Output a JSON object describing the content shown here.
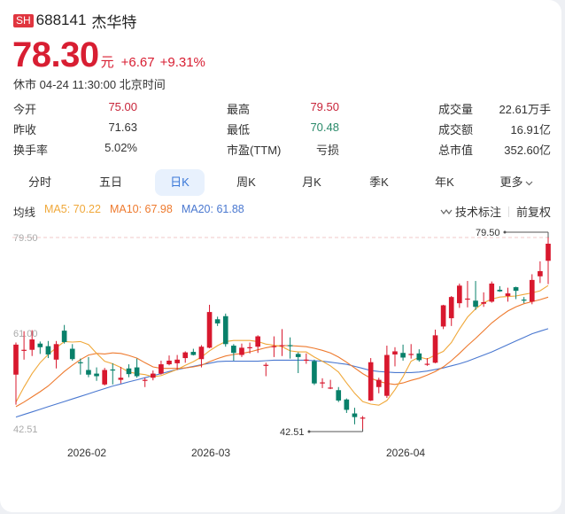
{
  "header": {
    "exchange_badge": "SH",
    "code": "688141",
    "name": "杰华特",
    "price": "78.30",
    "currency": "元",
    "change": "+6.67",
    "change_pct": "+9.31%",
    "status": "休市 04-24 11:30:00 北京时间"
  },
  "stats": [
    {
      "label": "今开",
      "value": "75.00",
      "color": "#c8253a"
    },
    {
      "label": "最高",
      "value": "79.50",
      "color": "#c8253a"
    },
    {
      "label": "成交量",
      "value": "22.61万手",
      "color": "#333333"
    },
    {
      "label": "昨收",
      "value": "71.63",
      "color": "#333333"
    },
    {
      "label": "最低",
      "value": "70.48",
      "color": "#2a8a6a"
    },
    {
      "label": "成交额",
      "value": "16.91亿",
      "color": "#333333"
    },
    {
      "label": "换手率",
      "value": "5.02%",
      "color": "#333333"
    },
    {
      "label": "市盈(TTM)",
      "value": "亏损",
      "color": "#333333"
    },
    {
      "label": "总市值",
      "value": "352.60亿",
      "color": "#333333"
    }
  ],
  "tabs": [
    {
      "label": "分时",
      "active": false
    },
    {
      "label": "五日",
      "active": false
    },
    {
      "label": "日K",
      "active": true
    },
    {
      "label": "周K",
      "active": false
    },
    {
      "label": "月K",
      "active": false
    },
    {
      "label": "季K",
      "active": false
    },
    {
      "label": "年K",
      "active": false
    },
    {
      "label": "更多",
      "active": false,
      "icon": "chevron-down-icon"
    }
  ],
  "indicators": {
    "label": "均线",
    "ma5": "MA5: 70.22",
    "ma10": "MA10: 67.98",
    "ma20": "MA20: 61.88",
    "tech_marks": "技术标注",
    "adjust": "前复权"
  },
  "colors": {
    "up": "#d8182e",
    "down": "#08806a",
    "ma5": "#f0a83a",
    "ma10": "#ee7a2e",
    "ma20": "#4a78d0",
    "accent": "#3a78d8"
  },
  "chart_data": {
    "type": "candlestick",
    "title": "688141 杰华特 日K",
    "ylim": [
      42.51,
      79.5
    ],
    "y_ticks": [
      "79.50",
      "61.00",
      "42.51"
    ],
    "x_ticks": [
      "2026-02",
      "2026-03",
      "2026-04"
    ],
    "annotations": {
      "high": "79.50",
      "low": "42.51"
    },
    "legend": [
      "MA5: 70.22",
      "MA10: 67.98",
      "MA20: 61.88"
    ],
    "candles": [
      [
        53.0,
        58.8,
        47.2,
        59.2
      ],
      [
        57.6,
        57.8,
        55.9,
        61.4
      ],
      [
        57.8,
        59.8,
        56.6,
        61.6
      ],
      [
        59.0,
        58.3,
        57.0,
        59.4
      ],
      [
        58.5,
        56.9,
        56.2,
        59.5
      ],
      [
        55.9,
        58.9,
        54.2,
        59.5
      ],
      [
        61.5,
        59.3,
        59.0,
        62.6
      ],
      [
        58.0,
        56.0,
        55.7,
        58.9
      ],
      [
        55.4,
        55.3,
        53.0,
        56.1
      ],
      [
        53.9,
        53.0,
        52.5,
        56.4
      ],
      [
        53.2,
        52.7,
        51.8,
        54.4
      ],
      [
        51.1,
        53.9,
        50.9,
        54.3
      ],
      [
        54.0,
        53.8,
        51.1,
        55.2
      ],
      [
        52.0,
        52.4,
        51.3,
        54.5
      ],
      [
        54.2,
        53.1,
        52.5,
        55.0
      ],
      [
        54.4,
        52.7,
        52.4,
        56.1
      ],
      [
        51.9,
        52.0,
        50.6,
        52.4
      ],
      [
        52.4,
        53.2,
        51.9,
        53.8
      ],
      [
        53.2,
        55.0,
        53.0,
        55.7
      ],
      [
        55.0,
        55.7,
        54.8,
        56.7
      ],
      [
        55.2,
        55.9,
        53.9,
        56.8
      ],
      [
        56.2,
        57.3,
        55.3,
        57.5
      ],
      [
        57.4,
        56.8,
        56.7,
        58.0
      ],
      [
        56.0,
        58.4,
        54.4,
        58.7
      ],
      [
        58.2,
        65.1,
        58.1,
        66.5
      ],
      [
        63.7,
        62.9,
        62.4,
        64.2
      ],
      [
        64.3,
        58.9,
        58.4,
        64.8
      ],
      [
        58.6,
        57.2,
        55.7,
        58.9
      ],
      [
        56.8,
        58.2,
        56.4,
        59.0
      ],
      [
        58.2,
        58.3,
        57.1,
        59.2
      ],
      [
        58.4,
        60.4,
        57.2,
        60.6
      ],
      [
        54.8,
        54.9,
        52.7,
        55.3
      ],
      [
        58.3,
        58.5,
        56.4,
        60.4
      ],
      [
        58.6,
        58.7,
        56.6,
        61.8
      ],
      [
        58.7,
        58.6,
        56.1,
        60.2
      ],
      [
        57.0,
        56.4,
        53.3,
        57.3
      ],
      [
        55.8,
        55.9,
        55.1,
        57.1
      ],
      [
        55.6,
        51.3,
        51.0,
        55.9
      ],
      [
        51.3,
        51.5,
        50.4,
        52.3
      ],
      [
        50.4,
        50.5,
        50.2,
        52.0
      ],
      [
        50.0,
        48.0,
        47.7,
        50.6
      ],
      [
        48.2,
        46.2,
        45.6,
        48.4
      ],
      [
        45.5,
        44.8,
        43.4,
        46.6
      ],
      [
        44.5,
        44.7,
        42.51,
        45.0
      ],
      [
        48.0,
        55.4,
        47.9,
        56.2
      ],
      [
        50.6,
        52.0,
        49.4,
        52.4
      ],
      [
        48.9,
        56.8,
        48.5,
        58.6
      ],
      [
        56.9,
        57.5,
        54.6,
        58.3
      ],
      [
        57.2,
        56.3,
        55.7,
        58.8
      ],
      [
        56.9,
        57.0,
        56.1,
        58.9
      ],
      [
        57.1,
        55.8,
        55.5,
        57.9
      ],
      [
        54.9,
        55.1,
        54.7,
        56.2
      ],
      [
        55.3,
        60.6,
        55.2,
        61.7
      ],
      [
        62.3,
        66.4,
        61.8,
        66.5
      ],
      [
        63.9,
        68.0,
        62.4,
        68.2
      ],
      [
        66.8,
        70.2,
        65.9,
        70.6
      ],
      [
        67.5,
        67.7,
        66.0,
        71.1
      ],
      [
        67.3,
        66.1,
        65.5,
        71.1
      ],
      [
        66.7,
        67.0,
        66.1,
        68.9
      ],
      [
        67.1,
        70.6,
        66.9,
        71.0
      ],
      [
        69.4,
        69.1,
        69.0,
        70.1
      ],
      [
        68.2,
        68.7,
        67.1,
        69.8
      ],
      [
        69.9,
        69.2,
        67.6,
        70.0
      ],
      [
        67.5,
        67.4,
        66.8,
        68.0
      ],
      [
        67.1,
        71.3,
        66.6,
        72.4
      ],
      [
        72.0,
        73.0,
        70.7,
        74.9
      ],
      [
        75.0,
        78.3,
        70.48,
        79.5
      ]
    ],
    "ma5": [
      47.7,
      50.6,
      53.2,
      55.3,
      56.9,
      58.2,
      59.4,
      59.3,
      59.4,
      58.8,
      57.1,
      55.6,
      55.1,
      54.4,
      53.5,
      53.2,
      53.0,
      52.6,
      52.8,
      53.4,
      54.0,
      54.8,
      55.5,
      56.4,
      57.6,
      58.6,
      59.4,
      59.6,
      59.6,
      59.6,
      59.4,
      58.9,
      58.7,
      58.4,
      57.6,
      57.4,
      57.4,
      56.4,
      55.6,
      54.7,
      53.5,
      51.4,
      49.4,
      47.8,
      47.3,
      47.1,
      48.0,
      50.1,
      52.6,
      55.6,
      56.4,
      56.0,
      56.8,
      57.5,
      59.2,
      61.8,
      64.1,
      65.7,
      66.9,
      67.6,
      68.0,
      68.1,
      68.2,
      68.5,
      68.8,
      69.2,
      70.22
    ],
    "ma10": [
      46.8,
      47.7,
      48.7,
      49.7,
      50.8,
      52.2,
      53.6,
      54.8,
      55.9,
      56.8,
      57.1,
      57.0,
      57.2,
      57.1,
      56.7,
      56.2,
      55.3,
      54.5,
      54.2,
      54.2,
      54.2,
      54.3,
      54.5,
      54.8,
      55.5,
      56.1,
      56.6,
      56.9,
      57.1,
      57.4,
      57.8,
      58.2,
      58.5,
      58.6,
      58.6,
      58.5,
      58.4,
      58.1,
      57.7,
      57.2,
      56.4,
      55.4,
      54.3,
      53.2,
      52.3,
      51.7,
      51.3,
      51.1,
      51.4,
      51.9,
      52.3,
      52.9,
      53.6,
      54.5,
      55.7,
      57.1,
      58.6,
      60.0,
      61.5,
      63.0,
      64.2,
      65.3,
      66.1,
      66.7,
      67.1,
      67.5,
      67.98
    ],
    "ma20": [
      44.8,
      45.3,
      45.8,
      46.3,
      46.8,
      47.3,
      47.8,
      48.3,
      48.8,
      49.3,
      49.8,
      50.3,
      50.8,
      51.2,
      51.6,
      52.0,
      52.4,
      52.8,
      53.2,
      53.6,
      54.0,
      54.3,
      54.6,
      54.9,
      55.2,
      55.5,
      55.6,
      55.6,
      55.6,
      55.6,
      55.6,
      55.7,
      55.8,
      55.8,
      55.8,
      55.8,
      55.8,
      55.7,
      55.6,
      55.4,
      55.2,
      55.0,
      54.6,
      54.2,
      53.8,
      53.6,
      53.5,
      53.4,
      53.4,
      53.4,
      53.5,
      53.7,
      54.0,
      54.3,
      54.7,
      55.1,
      55.6,
      56.2,
      56.8,
      57.4,
      58.1,
      58.8,
      59.5,
      60.2,
      60.9,
      61.4,
      61.88
    ]
  }
}
